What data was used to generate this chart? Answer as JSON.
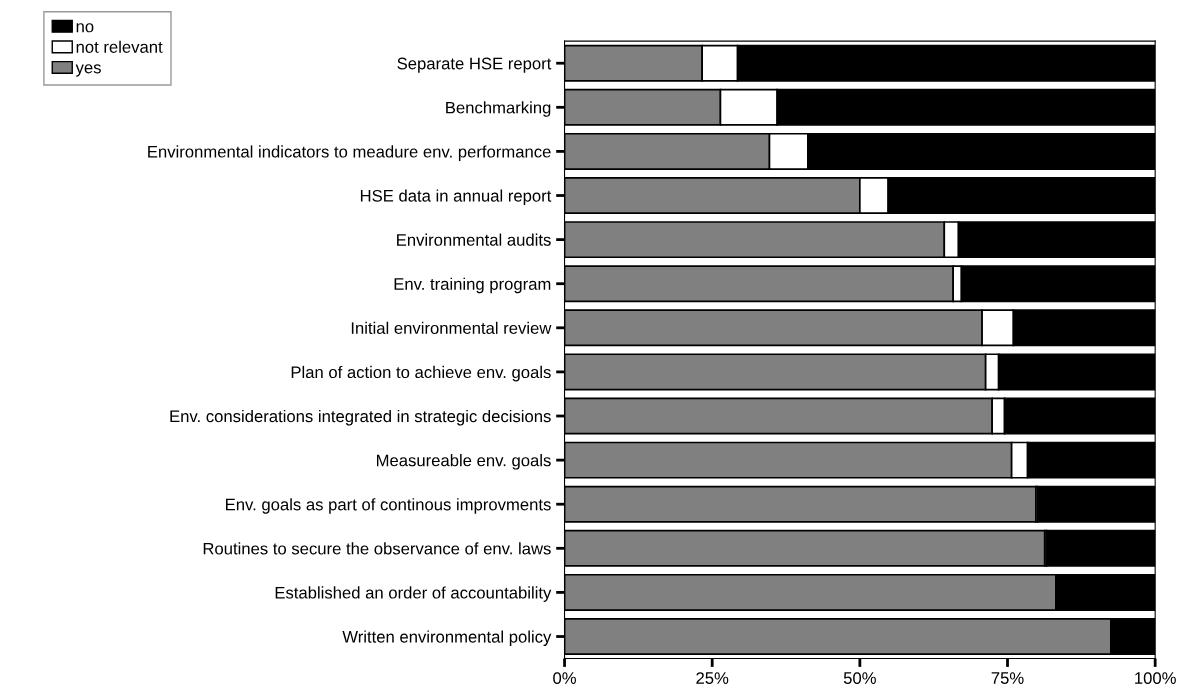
{
  "chart_data": {
    "type": "bar",
    "orientation": "horizontal",
    "stacked": true,
    "categories": [
      "Separate HSE report",
      "Benchmarking",
      "Environmental indicators to meadure env. performance",
      "HSE data in annual report",
      "Environmental audits",
      "Env. training program",
      "Initial environmental review",
      "Plan of action to achieve env. goals",
      "Env. considerations integrated in strategic decisions",
      "Measureable env. goals",
      "Env. goals as part of continous improvments",
      "Routines to secure the observance of env. laws",
      "Established an order of accountability",
      "Written environmental policy"
    ],
    "series": [
      {
        "name": "yes",
        "color": "#808080",
        "values": [
          23.3,
          26.4,
          34.7,
          50.0,
          64.3,
          65.8,
          70.7,
          71.3,
          72.4,
          75.7,
          79.8,
          81.3,
          83.2,
          92.5
        ]
      },
      {
        "name": "not relevant",
        "color": "#ffffff",
        "values": [
          6.0,
          9.6,
          6.5,
          4.8,
          2.4,
          1.4,
          5.3,
          2.2,
          2.1,
          2.7,
          0.3,
          0.3,
          0,
          0
        ]
      },
      {
        "name": "no",
        "color": "#000000",
        "values": [
          70.7,
          64.0,
          58.8,
          45.2,
          33.3,
          32.8,
          24.0,
          26.5,
          25.5,
          21.6,
          19.9,
          18.4,
          16.8,
          7.5
        ]
      }
    ],
    "xlim": [
      0,
      100
    ],
    "xticks": [
      {
        "value": 0,
        "label": "0%"
      },
      {
        "value": 25,
        "label": "25%"
      },
      {
        "value": 50,
        "label": "50%"
      },
      {
        "value": 75,
        "label": "75%"
      },
      {
        "value": 100,
        "label": "100%"
      }
    ],
    "grid": false,
    "legend": "top left"
  }
}
